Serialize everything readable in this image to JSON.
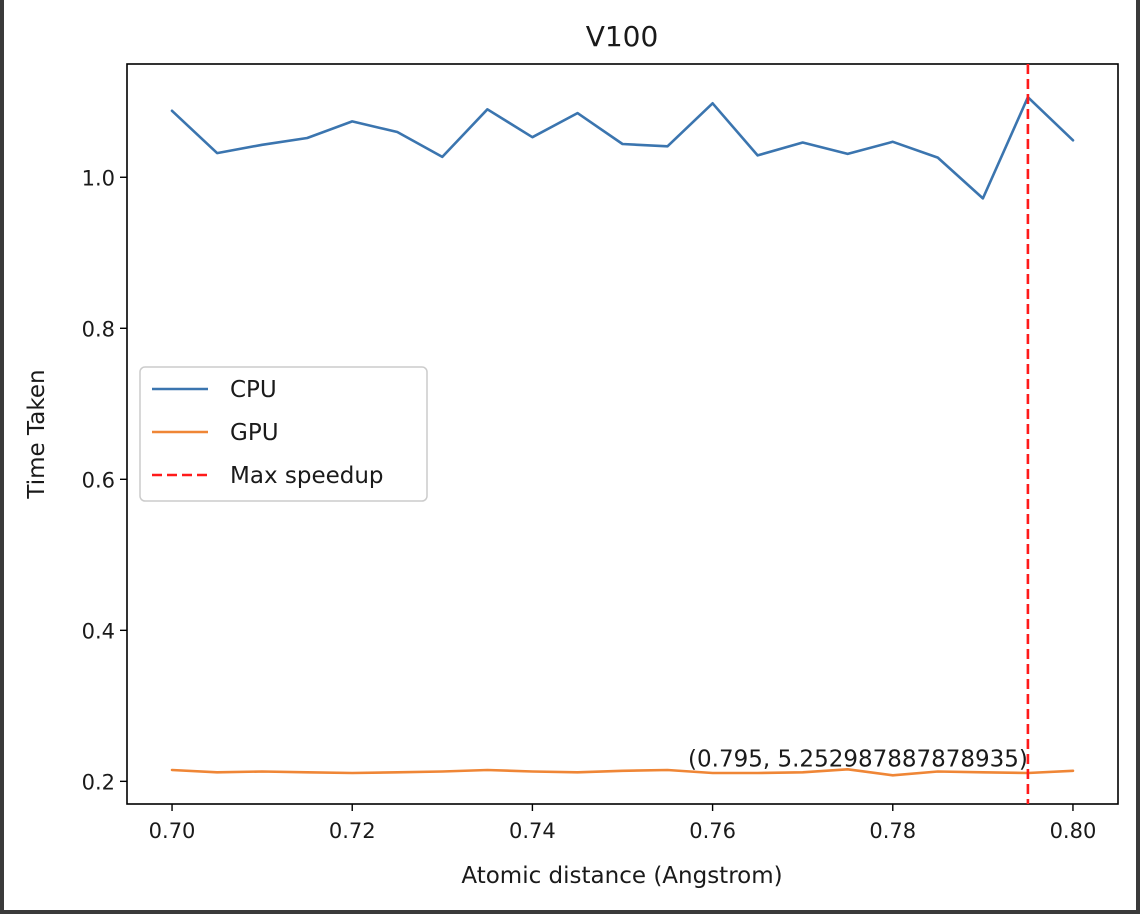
{
  "chart_data": {
    "type": "line",
    "title": "V100",
    "xlabel": "Atomic distance (Angstrom)",
    "ylabel": "Time Taken",
    "xlim": [
      0.695,
      0.805
    ],
    "ylim": [
      0.17,
      1.15
    ],
    "xticks": [
      0.7,
      0.72,
      0.74,
      0.76,
      0.78,
      0.8
    ],
    "xtick_labels": [
      "0.70",
      "0.72",
      "0.74",
      "0.76",
      "0.78",
      "0.80"
    ],
    "yticks": [
      0.2,
      0.4,
      0.6,
      0.8,
      1.0
    ],
    "ytick_labels": [
      "0.2",
      "0.4",
      "0.6",
      "0.8",
      "1.0"
    ],
    "grid": false,
    "legend_position": "center-left",
    "x": [
      0.7,
      0.705,
      0.71,
      0.715,
      0.72,
      0.725,
      0.73,
      0.735,
      0.74,
      0.745,
      0.75,
      0.755,
      0.76,
      0.765,
      0.77,
      0.775,
      0.78,
      0.785,
      0.79,
      0.795,
      0.8
    ],
    "series": [
      {
        "name": "CPU",
        "color": "#3b75af",
        "style": "solid",
        "values": [
          1.088,
          1.032,
          1.043,
          1.052,
          1.074,
          1.06,
          1.027,
          1.09,
          1.053,
          1.085,
          1.044,
          1.041,
          1.098,
          1.029,
          1.046,
          1.031,
          1.047,
          1.026,
          0.972,
          1.106,
          1.049
        ]
      },
      {
        "name": "GPU",
        "color": "#ef8636",
        "style": "solid",
        "values": [
          0.215,
          0.212,
          0.213,
          0.212,
          0.211,
          0.212,
          0.213,
          0.215,
          0.213,
          0.212,
          0.214,
          0.215,
          0.211,
          0.211,
          0.212,
          0.216,
          0.208,
          0.213,
          0.212,
          0.211,
          0.214
        ]
      }
    ],
    "vline": {
      "name": "Max speedup",
      "x": 0.795,
      "color": "#ff1a1a",
      "style": "dashed"
    },
    "annotation": {
      "text": "(0.795, 5.252987887878935)",
      "x": 0.795,
      "y": 0.212
    }
  }
}
